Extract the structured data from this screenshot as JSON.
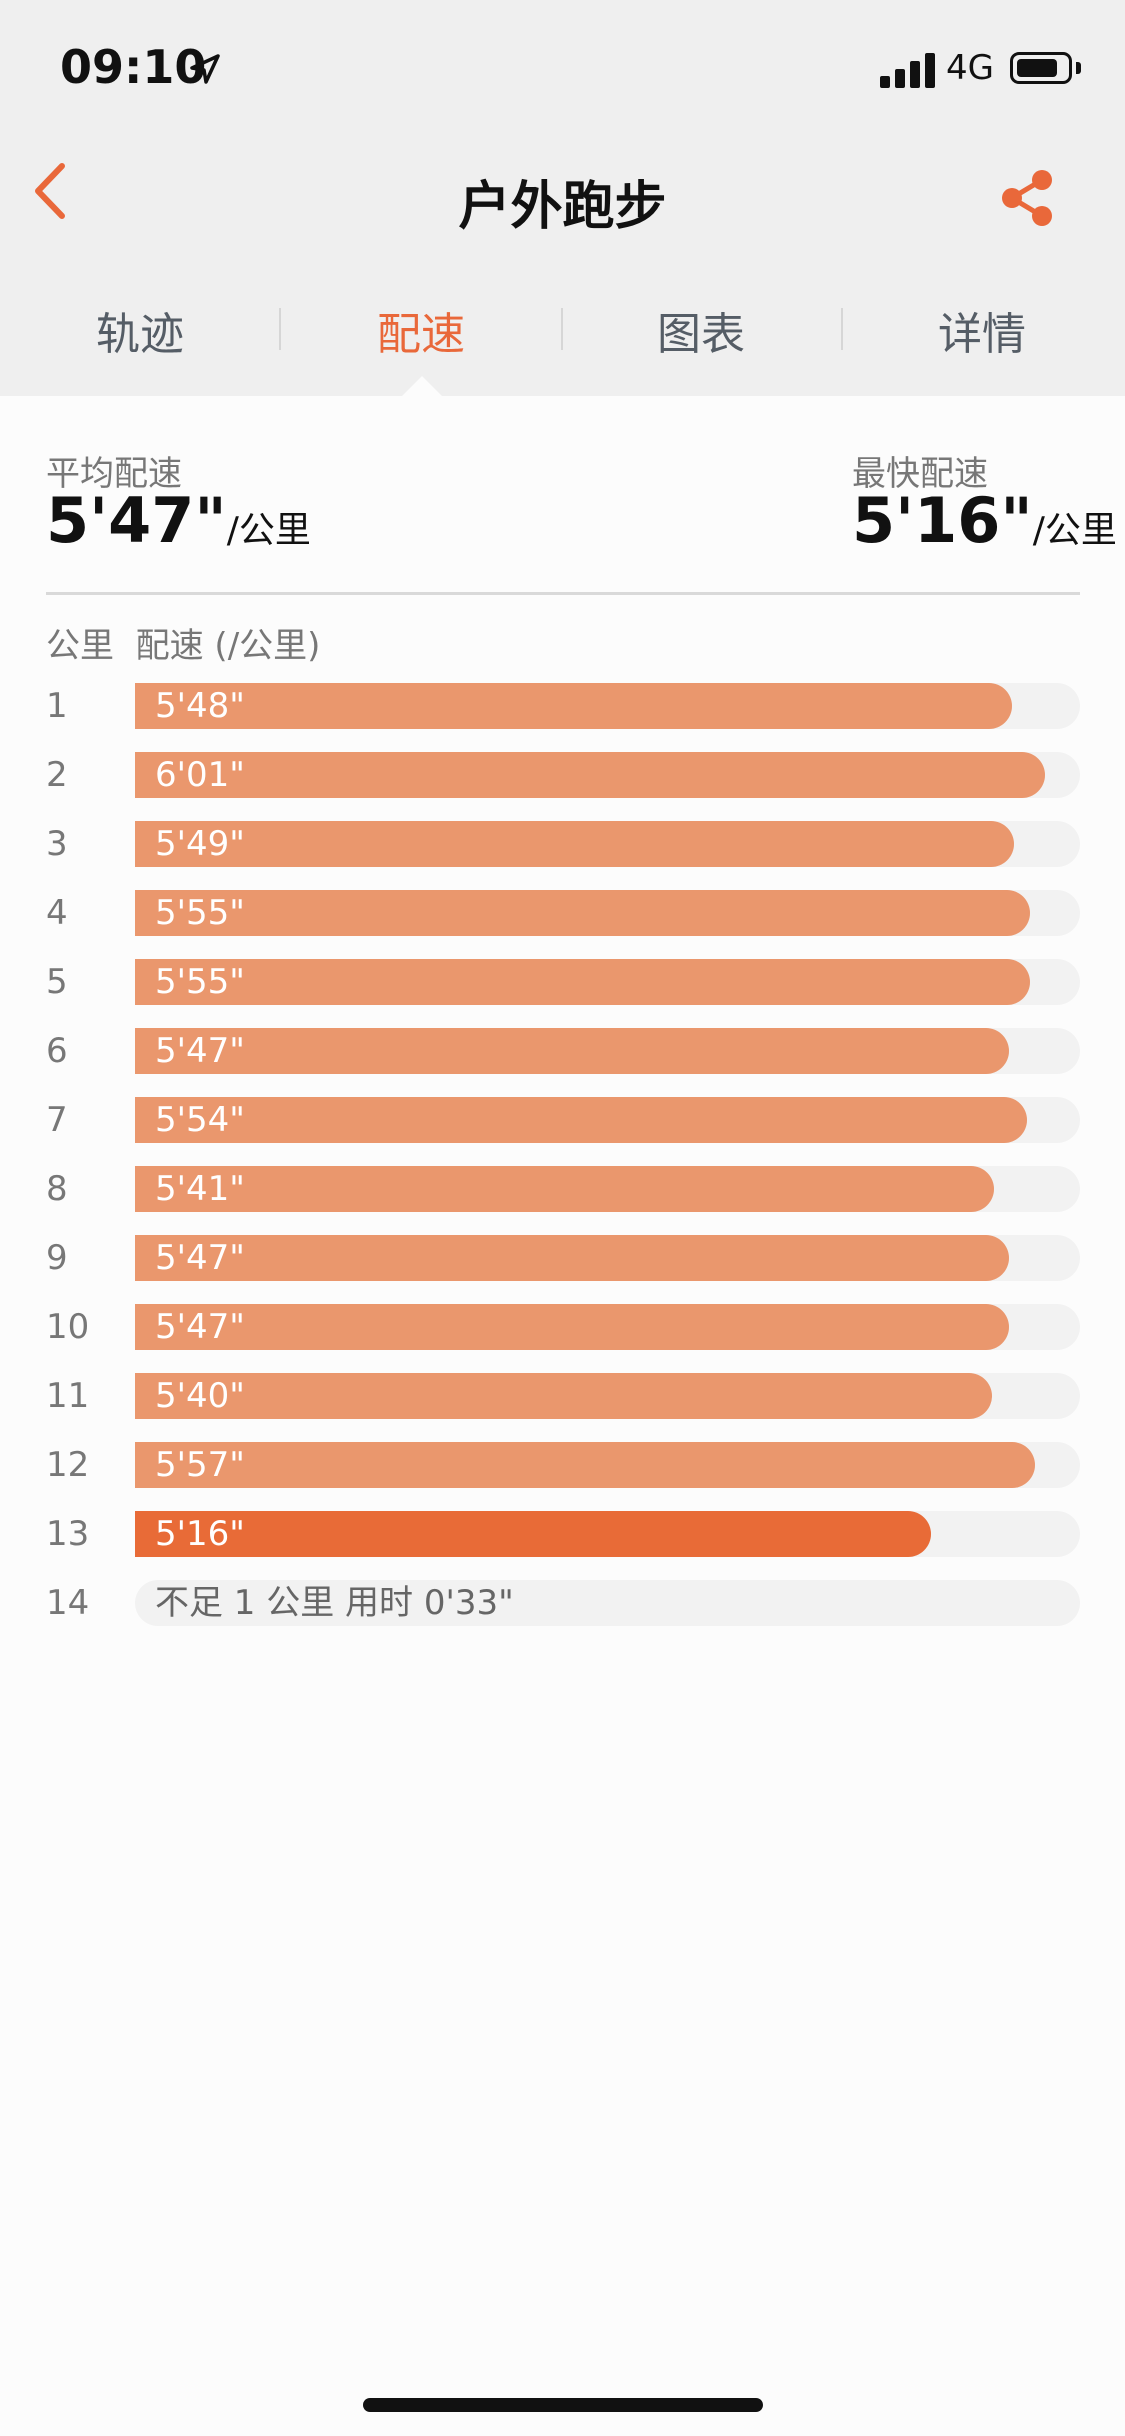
{
  "status_bar": {
    "time": "09:10",
    "network": "4G",
    "icons": [
      "location-arrow-icon",
      "signal-icon",
      "battery-icon"
    ]
  },
  "nav": {
    "title": "户外跑步",
    "back_icon": "chevron-left-icon",
    "share_icon": "share-icon"
  },
  "tabs": [
    {
      "label": "轨迹",
      "active": false
    },
    {
      "label": "配速",
      "active": true
    },
    {
      "label": "图表",
      "active": false
    },
    {
      "label": "详情",
      "active": false
    }
  ],
  "summary": {
    "average": {
      "label": "平均配速",
      "value": "5'47\"",
      "unit": "/公里"
    },
    "fastest": {
      "label": "最快配速",
      "value": "5'16\"",
      "unit": "/公里"
    }
  },
  "table": {
    "header_km": "公里",
    "header_pace": "配速 (/公里)"
  },
  "colors": {
    "accent": "#e9683a",
    "bar": "#ea976d",
    "bar_fastest": "#e86b37",
    "track": "#f2f2f2"
  },
  "splits": [
    {
      "km": "1",
      "pace": "5'48\"",
      "seconds": 348,
      "fastest": false,
      "partial": false
    },
    {
      "km": "2",
      "pace": "6'01\"",
      "seconds": 361,
      "fastest": false,
      "partial": false
    },
    {
      "km": "3",
      "pace": "5'49\"",
      "seconds": 349,
      "fastest": false,
      "partial": false
    },
    {
      "km": "4",
      "pace": "5'55\"",
      "seconds": 355,
      "fastest": false,
      "partial": false
    },
    {
      "km": "5",
      "pace": "5'55\"",
      "seconds": 355,
      "fastest": false,
      "partial": false
    },
    {
      "km": "6",
      "pace": "5'47\"",
      "seconds": 347,
      "fastest": false,
      "partial": false
    },
    {
      "km": "7",
      "pace": "5'54\"",
      "seconds": 354,
      "fastest": false,
      "partial": false
    },
    {
      "km": "8",
      "pace": "5'41\"",
      "seconds": 341,
      "fastest": false,
      "partial": false
    },
    {
      "km": "9",
      "pace": "5'47\"",
      "seconds": 347,
      "fastest": false,
      "partial": false
    },
    {
      "km": "10",
      "pace": "5'47\"",
      "seconds": 347,
      "fastest": false,
      "partial": false
    },
    {
      "km": "11",
      "pace": "5'40\"",
      "seconds": 340,
      "fastest": false,
      "partial": false
    },
    {
      "km": "12",
      "pace": "5'57\"",
      "seconds": 357,
      "fastest": false,
      "partial": false
    },
    {
      "km": "13",
      "pace": "5'16\"",
      "seconds": 316,
      "fastest": true,
      "partial": false
    },
    {
      "km": "14",
      "pace": "不足 1 公里 用时 0'33\"",
      "seconds": 33,
      "fastest": false,
      "partial": true
    }
  ]
}
